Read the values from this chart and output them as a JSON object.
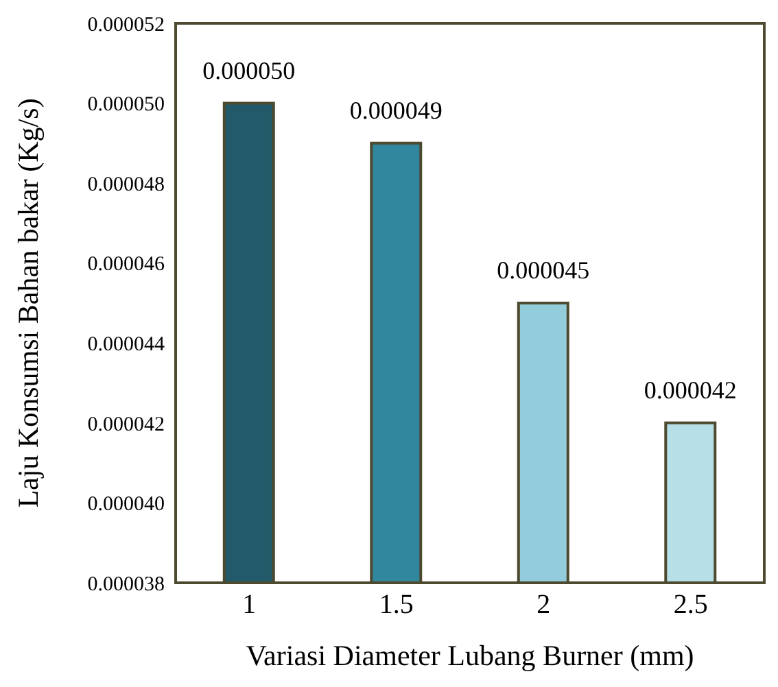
{
  "chart_data": {
    "type": "bar",
    "xlabel": "Variasi Diameter Lubang Burner (mm)",
    "ylabel": "Laju Konsumsi Bahan bakar (Kg/s)",
    "categories": [
      "1",
      "1.5",
      "2",
      "2.5"
    ],
    "values": [
      5e-05,
      4.9e-05,
      4.5e-05,
      4.2e-05
    ],
    "value_labels": [
      "0.000050",
      "0.000049",
      "0.000045",
      "0.000042"
    ],
    "colors": [
      "#235a69",
      "#31879e",
      "#93cddc",
      "#b7dfe8"
    ],
    "ylim": [
      3.8e-05,
      5.2e-05
    ],
    "yticks": [
      {
        "value": 3.8e-05,
        "label": "0.000038"
      },
      {
        "value": 4e-05,
        "label": "0.000040"
      },
      {
        "value": 4.2e-05,
        "label": "0.000042"
      },
      {
        "value": 4.4e-05,
        "label": "0.000044"
      },
      {
        "value": 4.6e-05,
        "label": "0.000046"
      },
      {
        "value": 4.8e-05,
        "label": "0.000048"
      },
      {
        "value": 5e-05,
        "label": "0.000050"
      },
      {
        "value": 5.2e-05,
        "label": "0.000052"
      }
    ],
    "grid": false,
    "legend": false
  }
}
